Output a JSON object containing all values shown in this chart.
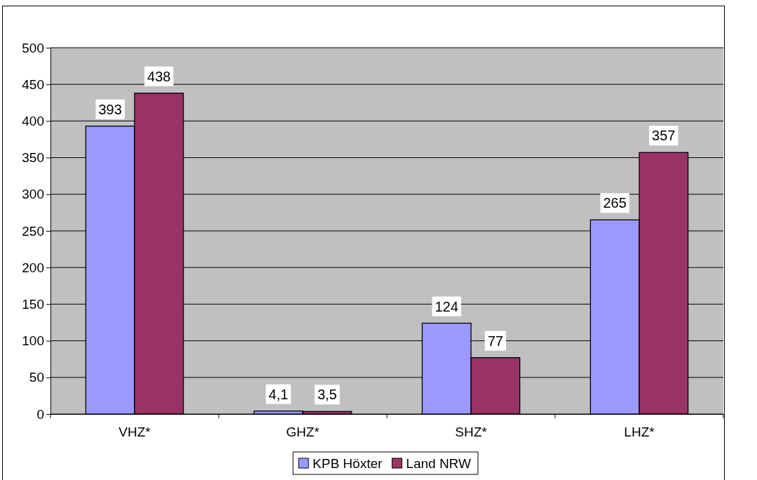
{
  "chart_data": {
    "type": "bar",
    "categories": [
      "VHZ*",
      "GHZ*",
      "SHZ*",
      "LHZ*"
    ],
    "series": [
      {
        "name": "KPB Höxter",
        "color": "#9999ff",
        "values": [
          393,
          4.1,
          124,
          265
        ],
        "value_labels": [
          "393",
          "4,1",
          "124",
          "265"
        ]
      },
      {
        "name": "Land NRW",
        "color": "#993366",
        "values": [
          438,
          3.5,
          77,
          357
        ],
        "value_labels": [
          "438",
          "3,5",
          "77",
          "357"
        ]
      }
    ],
    "ylim": [
      0,
      500
    ],
    "yticks": [
      0,
      50,
      100,
      150,
      200,
      250,
      300,
      350,
      400,
      450,
      500
    ],
    "grid": "y",
    "legend": "bottom"
  }
}
